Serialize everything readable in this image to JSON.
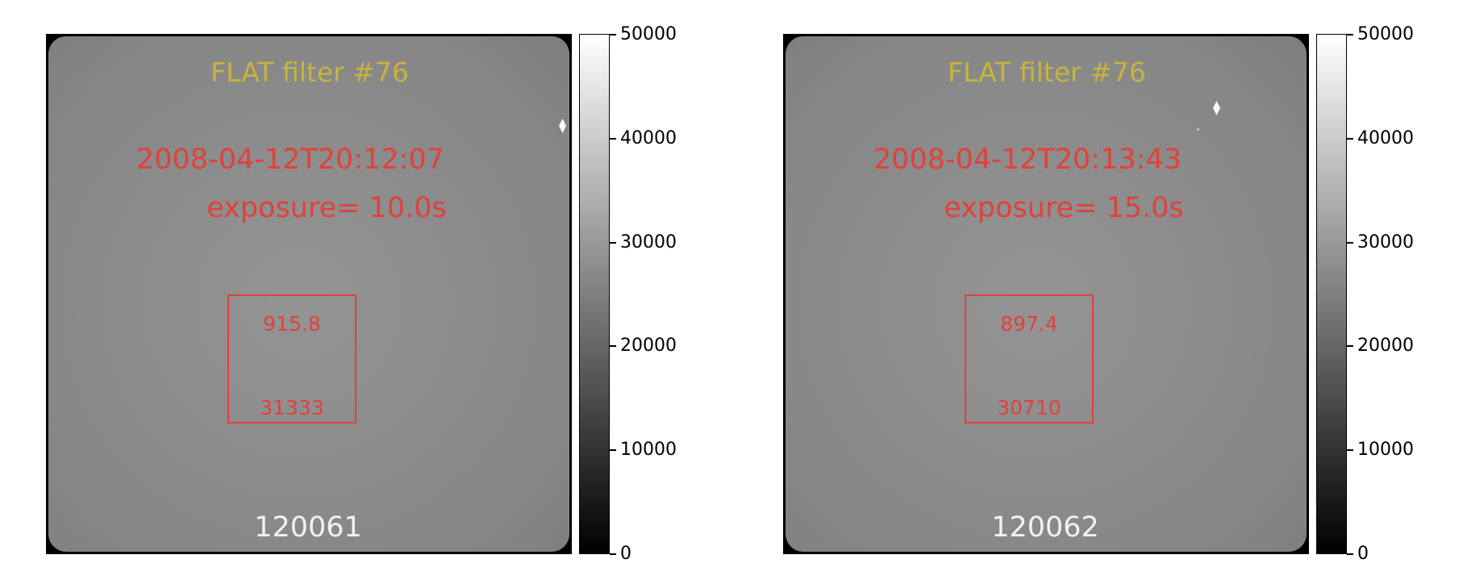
{
  "panels": [
    {
      "filter_label": "FLAT filter #76",
      "timestamp": "2008-04-12T20:12:07",
      "exposure": "exposure= 10.0s",
      "roi_value_top": "915.8",
      "roi_value_bottom": "31333",
      "frame_id": "120061"
    },
    {
      "filter_label": "FLAT filter #76",
      "timestamp": "2008-04-12T20:13:43",
      "exposure": "exposure= 15.0s",
      "roi_value_top": "897.4",
      "roi_value_bottom": "30710",
      "frame_id": "120062"
    }
  ],
  "colorbar": {
    "ticks": [
      "50000",
      "40000",
      "30000",
      "20000",
      "10000",
      "0"
    ],
    "range": [
      0,
      50000
    ],
    "colormap": "gray"
  },
  "colors": {
    "filter_label": "#c8b43c",
    "annotation_red": "#e2403a",
    "frame_id": "#f2f2f2"
  }
}
